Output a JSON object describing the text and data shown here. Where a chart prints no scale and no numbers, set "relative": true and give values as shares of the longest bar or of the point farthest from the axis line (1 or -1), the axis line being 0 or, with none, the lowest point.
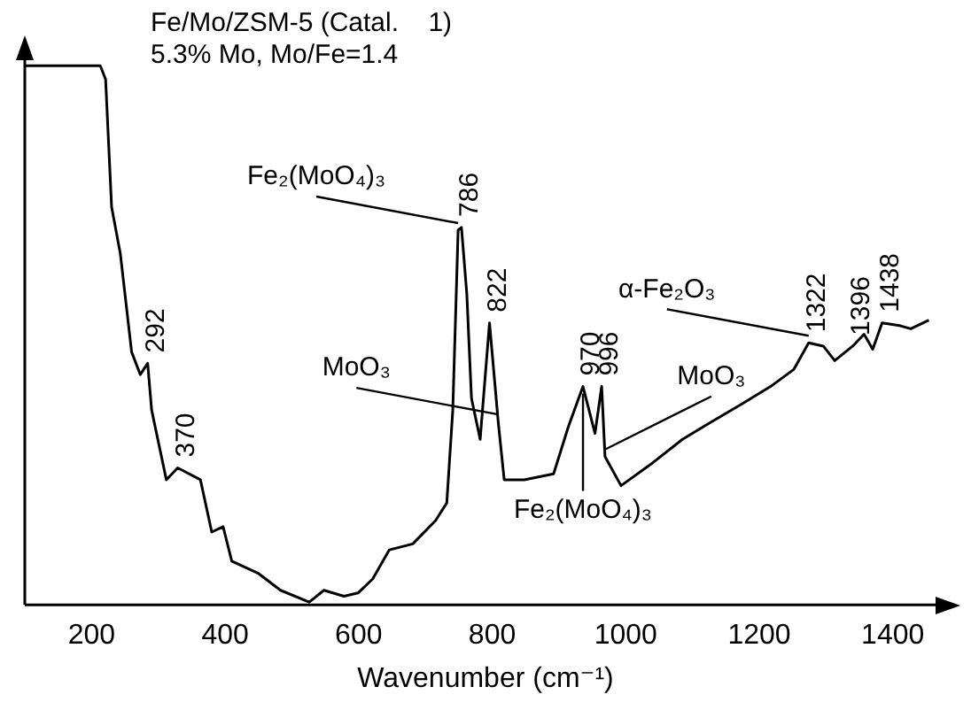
{
  "chart_data": {
    "type": "line",
    "title": "Fe/Mo/ZSM-5 (Catal.    1)",
    "subtitle": "5.3% Mo, Mo/Fe=1.4",
    "xlabel": "Wavenumber (cm⁻¹)",
    "relative": true,
    "color": "#000000",
    "xlim": [
      100,
      1480
    ],
    "xticks": [
      200,
      400,
      600,
      800,
      1000,
      1200,
      1400
    ],
    "tick_labels": "x",
    "grid": false,
    "legend": false,
    "marker": "none",
    "line_style": "solid",
    "x": [
      101,
      213,
      221,
      230,
      243,
      260,
      273,
      284,
      290,
      312,
      329,
      363,
      380,
      397,
      410,
      449,
      483,
      526,
      548,
      578,
      599,
      621,
      646,
      681,
      715,
      732,
      741,
      749,
      754,
      762,
      769,
      782,
      796,
      809,
      818,
      848,
      892,
      914,
      936,
      954,
      964,
      969,
      993,
      1041,
      1085,
      1129,
      1173,
      1217,
      1252,
      1274,
      1296,
      1313,
      1340,
      1357,
      1370,
      1384,
      1410,
      1427,
      1454
    ],
    "values": [
      1.0,
      1.0,
      0.975,
      0.738,
      0.652,
      0.469,
      0.427,
      0.448,
      0.361,
      0.232,
      0.254,
      0.232,
      0.135,
      0.145,
      0.081,
      0.059,
      0.027,
      0.005,
      0.027,
      0.016,
      0.022,
      0.048,
      0.102,
      0.113,
      0.156,
      0.189,
      0.361,
      0.695,
      0.7,
      0.577,
      0.383,
      0.307,
      0.523,
      0.34,
      0.232,
      0.232,
      0.243,
      0.33,
      0.405,
      0.318,
      0.405,
      0.275,
      0.221,
      0.264,
      0.307,
      0.34,
      0.372,
      0.405,
      0.437,
      0.486,
      0.48,
      0.453,
      0.48,
      0.502,
      0.474,
      0.523,
      0.518,
      0.512,
      0.528
    ],
    "annotations": [
      {
        "text": "292",
        "x": 284,
        "y": 0.448
      },
      {
        "text": "370",
        "x": 329,
        "y": 0.254
      },
      {
        "text": "786",
        "x": 754,
        "y": 0.7
      },
      {
        "text": "Fe₂(MoO₄)₃",
        "x": 749,
        "y": 0.695
      },
      {
        "text": "822",
        "x": 796,
        "y": 0.523
      },
      {
        "text": "MoO₃",
        "x": 809,
        "y": 0.34
      },
      {
        "text": "970",
        "x": 936,
        "y": 0.405
      },
      {
        "text": "996",
        "x": 964,
        "y": 0.405
      },
      {
        "text": "Fe₂(MoO₄)₃",
        "x": 936,
        "y": 0.405
      },
      {
        "text": "MoO₃",
        "x": 969,
        "y": 0.275
      },
      {
        "text": "1322",
        "x": 1274,
        "y": 0.486
      },
      {
        "text": "α-Fe₂O₃",
        "x": 1274,
        "y": 0.486
      },
      {
        "text": "1396",
        "x": 1340,
        "y": 0.48
      },
      {
        "text": "1438",
        "x": 1384,
        "y": 0.523
      }
    ]
  }
}
